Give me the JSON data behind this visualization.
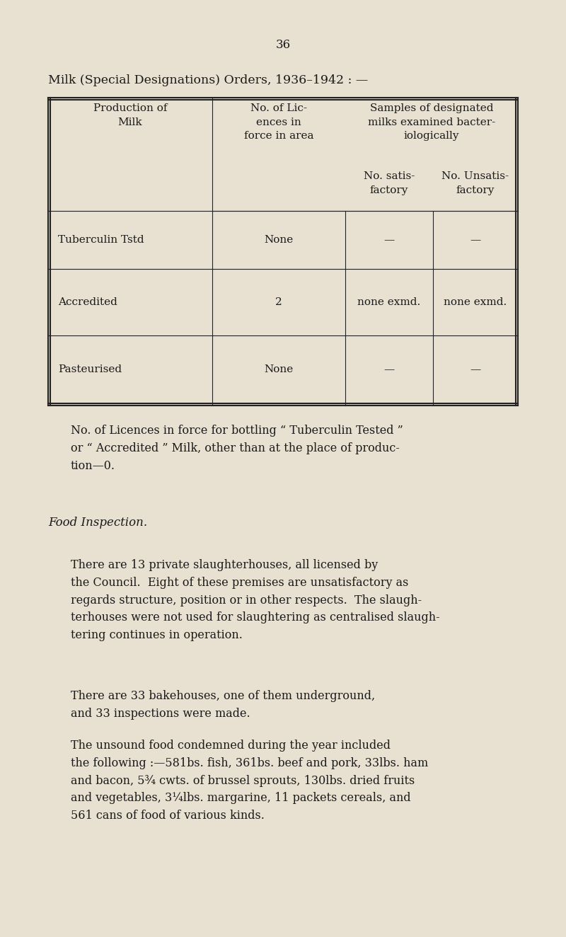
{
  "bg_color": "#e8e0d0",
  "page_number": "36",
  "title": "Milk (Special Designations) Orders, 1936–1942 : —",
  "table": {
    "col0_header": "Production of\nMilk",
    "col1_header": "No. of Lic-\nences in\nforce in area",
    "col23_header": "Samples of designated\nmilks examined bacter-\niologically",
    "col2_header": "No. satis-\nfactory",
    "col3_header": "No. Unsatis-\nfactory",
    "rows": [
      [
        "Tuberculin Tstd",
        "None",
        "—",
        "—"
      ],
      [
        "Accredited",
        "2",
        "none exmd.",
        "none exmd."
      ],
      [
        "Pasteurised",
        "None",
        "—",
        "—"
      ]
    ]
  },
  "para1": "No. of Licences in force for bottling “ Tuberculin Tested ”\nor “ Accredited ” Milk, other than at the place of produc-\ntion—0.",
  "food_heading": "Food Inspection.",
  "para2": "There are 13 private slaughterhouses, all licensed by\nthe Council.  Eight of these premises are unsatisfactory as\nregards structure, position or in other respects.  The slaugh-\nterhouses were not used for slaughtering as centralised slaugh-\ntering continues in operation.",
  "para3": "There are 33 bakehouses, one of them underground,\nand 33 inspections were made.",
  "para4": "The unsound food condemned during the year included\nthe following :—581bs. fish, 361bs. beef and pork, 33lbs. ham\nand bacon, 5¾ cwts. of brussel sprouts, 130lbs. dried fruits\nand vegetables, 3¼lbs. margarine, 11 packets cereals, and\n561 cans of food of various kinds."
}
